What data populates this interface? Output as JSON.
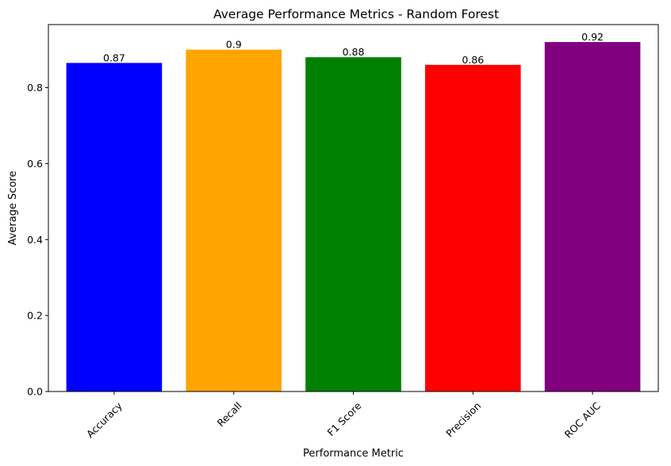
{
  "chart_data": {
    "type": "bar",
    "title": "Average Performance Metrics - Random Forest",
    "xlabel": "Performance Metric",
    "ylabel": "Average Score",
    "categories": [
      "Accuracy",
      "Recall",
      "F1 Score",
      "Precision",
      "ROC AUC"
    ],
    "values": [
      0.865,
      0.9,
      0.88,
      0.86,
      0.92
    ],
    "value_labels": [
      "0.87",
      "0.9",
      "0.88",
      "0.86",
      "0.92"
    ],
    "colors": [
      "#0000ff",
      "#ffa500",
      "#008000",
      "#ff0000",
      "#800080"
    ],
    "ylim": [
      0,
      0.966
    ],
    "yticks": [
      0.0,
      0.2,
      0.4,
      0.6,
      0.8
    ],
    "ytick_labels": [
      "0.0",
      "0.2",
      "0.4",
      "0.6",
      "0.8"
    ],
    "xtick_rotation_deg": 45,
    "grid": false,
    "legend": "none"
  }
}
